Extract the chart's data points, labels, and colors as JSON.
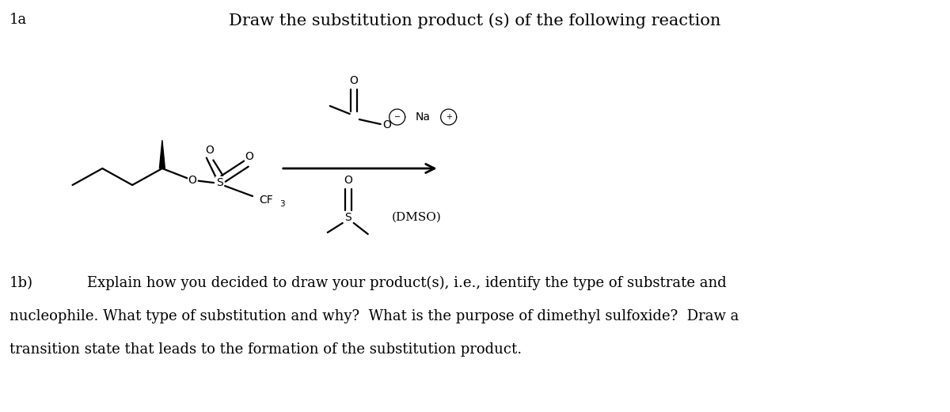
{
  "title": "Draw the substitution product (s) of the following reaction",
  "label_1a": "1a",
  "label_1b": "1b)",
  "text_1b_line1": "Explain how you decided to draw your product(s), i.e., identify the type of substrate and",
  "text_1b_line2": "nucleophile. What type of substitution and why?  What is the purpose of dimethyl sulfoxide?  Draw a",
  "text_1b_line3": "transition state that leads to the formation of the substitution product.",
  "background_color": "#ffffff",
  "text_color": "#000000",
  "title_fontsize": 15,
  "label_fontsize": 13,
  "body_fontsize": 13,
  "lw": 1.6
}
